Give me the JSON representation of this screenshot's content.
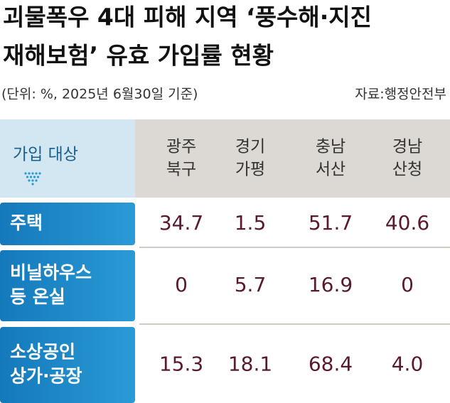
{
  "header": {
    "title_lines": [
      "괴물폭우 4대 피해 지역 ‘풍수해·지진",
      "재해보험’ 유효 가입률 현황"
    ],
    "unit": "(단위: %, 2025년 6월30일 기준)",
    "source": "자료:행정안전부"
  },
  "table": {
    "corner": "가입 대상",
    "columns": [
      [
        "광주",
        "북구"
      ],
      [
        "경기",
        "가평"
      ],
      [
        "충남",
        "서산"
      ],
      [
        "경남",
        "산청"
      ]
    ],
    "rows": [
      {
        "label": [
          "주택"
        ],
        "cells": [
          "34.7",
          "1.5",
          "51.7",
          "40.6"
        ]
      },
      {
        "label": [
          "비닐하우스",
          "등 온실"
        ],
        "cells": [
          "0",
          "5.7",
          "16.9",
          "0"
        ]
      },
      {
        "label": [
          "소상공인",
          "상가·공장"
        ],
        "cells": [
          "15.3",
          "18.1",
          "68.4",
          "4.0"
        ]
      }
    ]
  }
}
